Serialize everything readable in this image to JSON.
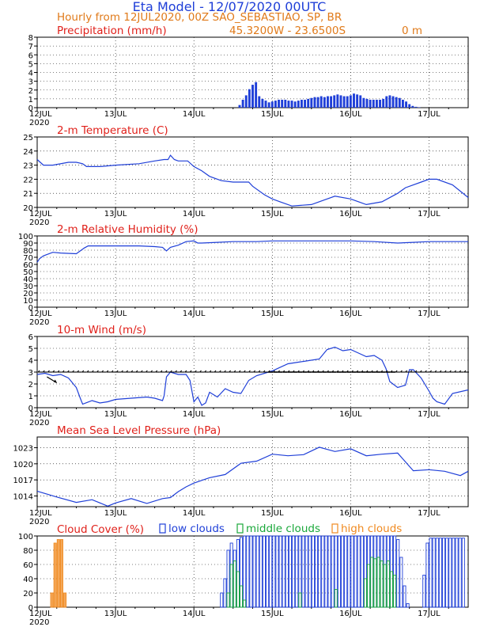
{
  "header": {
    "title": "Eta Model - 12/07/2020 00UTC",
    "subtitle": "Hourly from 12JUL2020, 00Z  SAO_SEBASTIAO, SP, BR",
    "location_coords": "45.3200W - 23.6500S",
    "elevation": "0  m"
  },
  "colors": {
    "title": "#1f3fd8",
    "subtitle": "#e07a1a",
    "panel_label": "#e0201a",
    "series": "#1f3fd8",
    "low": "#1f3fd8",
    "middle": "#1aa83a",
    "high": "#f08a20",
    "wind_barb": "#000000"
  },
  "x_axis": {
    "days": 5.5,
    "ticks": [
      {
        "day": 0,
        "label": "12JUL"
      },
      {
        "day": 1,
        "label": "13JUL"
      },
      {
        "day": 2,
        "label": "14JUL"
      },
      {
        "day": 3,
        "label": "15JUL"
      },
      {
        "day": 4,
        "label": "16JUL"
      },
      {
        "day": 5,
        "label": "17JUL"
      }
    ],
    "year_label": "2020"
  },
  "chart_data": [
    {
      "type": "bar",
      "title": "Precipitation (mm/h)",
      "ylim": [
        0,
        8
      ],
      "yticks": [
        "0",
        "1",
        "2",
        "3",
        "4",
        "5",
        "6",
        "7",
        "8"
      ],
      "x_hours": [
        62,
        63,
        64,
        65,
        66,
        67,
        68,
        69,
        70,
        71,
        72,
        73,
        74,
        75,
        76,
        77,
        78,
        79,
        80,
        81,
        82,
        83,
        84,
        85,
        86,
        87,
        88,
        89,
        90,
        91,
        92,
        93,
        94,
        95,
        96,
        97,
        98,
        99,
        100,
        101,
        102,
        103,
        104,
        105,
        106,
        107,
        108,
        109,
        110,
        111,
        112,
        113,
        114,
        115,
        116,
        117
      ],
      "values": [
        0.3,
        0.9,
        1.4,
        2.1,
        2.6,
        2.9,
        1.3,
        1.0,
        0.8,
        0.6,
        0.7,
        0.8,
        0.9,
        0.9,
        0.9,
        0.8,
        0.8,
        0.7,
        0.8,
        0.9,
        0.9,
        1.0,
        1.1,
        1.2,
        1.2,
        1.3,
        1.2,
        1.3,
        1.3,
        1.4,
        1.5,
        1.4,
        1.3,
        1.3,
        1.4,
        1.6,
        1.5,
        1.4,
        1.1,
        1.0,
        0.9,
        0.9,
        0.9,
        0.9,
        1.0,
        1.3,
        1.4,
        1.3,
        1.2,
        1.1,
        0.9,
        0.7,
        0.4,
        0.2,
        0.1,
        0.05
      ]
    },
    {
      "type": "line",
      "title": "2-m Temperature (C)",
      "ylim": [
        20,
        25
      ],
      "yticks": [
        "20",
        "21",
        "22",
        "23",
        "24",
        "25"
      ],
      "x_days": [
        0,
        0.08,
        0.2,
        0.4,
        0.5,
        0.58,
        0.63,
        0.8,
        1.0,
        1.3,
        1.5,
        1.62,
        1.67,
        1.7,
        1.75,
        1.8,
        1.92,
        2.0,
        2.1,
        2.2,
        2.35,
        2.5,
        2.7,
        2.75,
        2.9,
        3.0,
        3.1,
        3.25,
        3.5,
        3.7,
        3.8,
        4.0,
        4.2,
        4.4,
        4.6,
        4.7,
        4.9,
        5.0,
        5.1,
        5.3,
        5.5
      ],
      "values": [
        23.4,
        23.0,
        23.0,
        23.2,
        23.2,
        23.1,
        22.9,
        22.9,
        23.0,
        23.1,
        23.3,
        23.4,
        23.4,
        23.7,
        23.4,
        23.3,
        23.3,
        22.9,
        22.6,
        22.2,
        21.9,
        21.8,
        21.8,
        21.5,
        20.9,
        20.6,
        20.4,
        20.1,
        20.2,
        20.6,
        20.8,
        20.6,
        20.2,
        20.4,
        21.0,
        21.4,
        21.8,
        22.0,
        22.0,
        21.6,
        20.7
      ]
    },
    {
      "type": "line",
      "title": "2-m Relative Humidity (%)",
      "ylim": [
        0,
        100
      ],
      "yticks": [
        "0",
        "10",
        "20",
        "30",
        "40",
        "50",
        "60",
        "70",
        "80",
        "90",
        "100"
      ],
      "x_days": [
        0,
        0.03,
        0.08,
        0.2,
        0.3,
        0.5,
        0.6,
        0.65,
        0.8,
        1.0,
        1.3,
        1.5,
        1.6,
        1.65,
        1.7,
        1.8,
        1.9,
        2.0,
        2.05,
        2.1,
        2.3,
        2.5,
        2.8,
        3.0,
        3.5,
        4.0,
        4.3,
        4.6,
        4.8,
        5.0,
        5.3,
        5.5
      ],
      "values": [
        63,
        68,
        72,
        77,
        76,
        75,
        83,
        86,
        86,
        86,
        86,
        85,
        84,
        79,
        84,
        87,
        92,
        93,
        90,
        90,
        91,
        92,
        92,
        93,
        93,
        93,
        92,
        90,
        91,
        92,
        92,
        92
      ]
    },
    {
      "type": "line",
      "title": "10-m Wind (m/s)",
      "ylim": [
        0,
        6
      ],
      "yticks": [
        "0",
        "1",
        "2",
        "3",
        "4",
        "5",
        "6"
      ],
      "x_days": [
        0,
        0.1,
        0.2,
        0.3,
        0.4,
        0.5,
        0.55,
        0.58,
        0.7,
        0.8,
        0.9,
        1.0,
        1.2,
        1.4,
        1.5,
        1.6,
        1.62,
        1.65,
        1.7,
        1.75,
        1.8,
        1.85,
        1.9,
        1.95,
        2.0,
        2.05,
        2.1,
        2.15,
        2.2,
        2.3,
        2.4,
        2.5,
        2.6,
        2.7,
        2.8,
        3.0,
        3.2,
        3.4,
        3.6,
        3.7,
        3.8,
        3.9,
        4.0,
        4.1,
        4.2,
        4.3,
        4.4,
        4.45,
        4.5,
        4.6,
        4.7,
        4.75,
        4.8,
        4.9,
        5.0,
        5.05,
        5.1,
        5.2,
        5.3,
        5.5
      ],
      "values": [
        2.8,
        2.9,
        2.7,
        2.8,
        2.5,
        1.7,
        0.8,
        0.3,
        0.6,
        0.4,
        0.5,
        0.7,
        0.8,
        0.9,
        0.8,
        0.6,
        1.0,
        2.6,
        3.0,
        2.9,
        2.8,
        2.8,
        2.8,
        2.3,
        0.5,
        0.9,
        0.2,
        0.4,
        1.3,
        0.9,
        1.6,
        1.3,
        1.2,
        2.3,
        2.7,
        3.1,
        3.7,
        3.9,
        4.1,
        4.9,
        5.1,
        4.8,
        4.9,
        4.6,
        4.3,
        4.4,
        4.0,
        3.3,
        2.2,
        1.7,
        1.9,
        3.2,
        3.2,
        2.5,
        1.4,
        0.8,
        0.5,
        0.3,
        1.2,
        1.5
      ]
    },
    {
      "type": "line",
      "title": "Mean Sea Level Pressure (hPa)",
      "ylim": [
        1012,
        1025
      ],
      "yticks": [
        {
          "v": 1014,
          "label": "1014"
        },
        {
          "v": 1017,
          "label": "1017"
        },
        {
          "v": 1020,
          "label": "1020"
        },
        {
          "v": 1023,
          "label": "1023"
        }
      ],
      "x_days": [
        0,
        0.25,
        0.5,
        0.7,
        0.9,
        1.0,
        1.2,
        1.4,
        1.6,
        1.7,
        1.8,
        1.9,
        2.0,
        2.2,
        2.4,
        2.6,
        2.8,
        3.0,
        3.2,
        3.4,
        3.6,
        3.8,
        4.0,
        4.2,
        4.4,
        4.6,
        4.8,
        5.0,
        5.2,
        5.4,
        5.5
      ],
      "values": [
        1014.9,
        1013.8,
        1012.8,
        1013.3,
        1012.1,
        1012.7,
        1013.5,
        1012.6,
        1013.5,
        1013.7,
        1014.8,
        1015.7,
        1016.4,
        1017.4,
        1018.0,
        1020.1,
        1020.5,
        1021.8,
        1021.5,
        1021.7,
        1023.1,
        1022.3,
        1022.8,
        1021.5,
        1021.8,
        1022.0,
        1018.7,
        1018.9,
        1018.6,
        1017.8,
        1018.6
      ]
    },
    {
      "type": "bar",
      "title": "Cloud Cover (%)",
      "legend": [
        "low clouds",
        "middle clouds",
        "high clouds"
      ],
      "ylim": [
        0,
        100
      ],
      "yticks": [
        "0",
        "20",
        "40",
        "60",
        "80",
        "100"
      ],
      "series": [
        {
          "name": "low clouds",
          "segments": [
            {
              "start_h": 56,
              "end_h": 57,
              "value": 20
            },
            {
              "start_h": 57,
              "end_h": 58,
              "value": 40
            },
            {
              "start_h": 58,
              "end_h": 59,
              "value": 80
            },
            {
              "start_h": 59,
              "end_h": 60,
              "value": 90
            },
            {
              "start_h": 60,
              "end_h": 61,
              "value": 80
            },
            {
              "start_h": 61,
              "end_h": 62,
              "value": 95
            },
            {
              "start_h": 62,
              "end_h": 63,
              "value": 98
            },
            {
              "start_h": 63,
              "end_h": 64,
              "value": 100
            },
            {
              "start_h": 64,
              "end_h": 110,
              "value": 100
            },
            {
              "start_h": 110,
              "end_h": 111,
              "value": 95
            },
            {
              "start_h": 111,
              "end_h": 112,
              "value": 70
            },
            {
              "start_h": 112,
              "end_h": 113,
              "value": 30
            },
            {
              "start_h": 113,
              "end_h": 114,
              "value": 5
            },
            {
              "start_h": 118,
              "end_h": 119,
              "value": 45
            },
            {
              "start_h": 119,
              "end_h": 120,
              "value": 90
            },
            {
              "start_h": 120,
              "end_h": 131,
              "value": 97
            }
          ]
        },
        {
          "name": "middle clouds",
          "segments": [
            {
              "start_h": 58,
              "end_h": 59,
              "value": 20
            },
            {
              "start_h": 59,
              "end_h": 60,
              "value": 60
            },
            {
              "start_h": 60,
              "end_h": 61,
              "value": 65
            },
            {
              "start_h": 61,
              "end_h": 62,
              "value": 50
            },
            {
              "start_h": 62,
              "end_h": 63,
              "value": 30
            },
            {
              "start_h": 63,
              "end_h": 64,
              "value": 10
            },
            {
              "start_h": 80,
              "end_h": 81,
              "value": 20
            },
            {
              "start_h": 91,
              "end_h": 92,
              "value": 25
            },
            {
              "start_h": 100,
              "end_h": 101,
              "value": 40
            },
            {
              "start_h": 101,
              "end_h": 102,
              "value": 60
            },
            {
              "start_h": 102,
              "end_h": 103,
              "value": 70
            },
            {
              "start_h": 103,
              "end_h": 104,
              "value": 68
            },
            {
              "start_h": 104,
              "end_h": 105,
              "value": 70
            },
            {
              "start_h": 105,
              "end_h": 106,
              "value": 65
            },
            {
              "start_h": 106,
              "end_h": 107,
              "value": 60
            },
            {
              "start_h": 107,
              "end_h": 108,
              "value": 65
            },
            {
              "start_h": 108,
              "end_h": 109,
              "value": 50
            },
            {
              "start_h": 109,
              "end_h": 110,
              "value": 45
            }
          ]
        },
        {
          "name": "high clouds",
          "segments": [
            {
              "start_h": 4,
              "end_h": 5,
              "value": 20
            },
            {
              "start_h": 5,
              "end_h": 6,
              "value": 90
            },
            {
              "start_h": 6,
              "end_h": 7,
              "value": 95
            },
            {
              "start_h": 7,
              "end_h": 8,
              "value": 95
            },
            {
              "start_h": 8,
              "end_h": 9,
              "value": 20
            }
          ]
        }
      ]
    }
  ]
}
